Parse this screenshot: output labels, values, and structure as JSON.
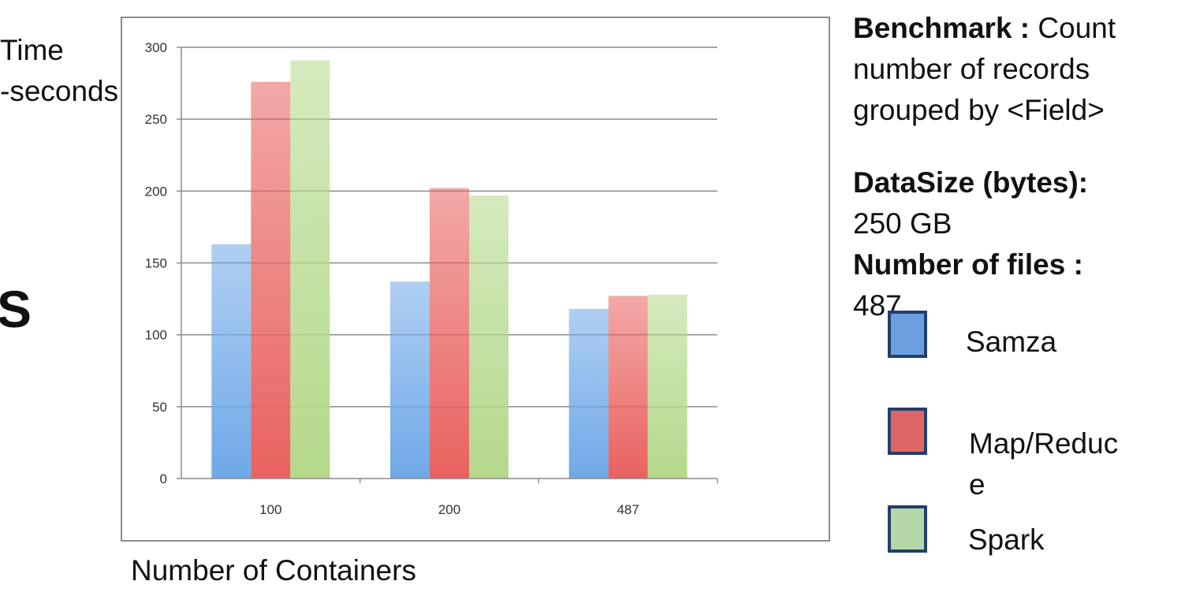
{
  "left_text": {
    "ylabel_line1": "Time",
    "ylabel_line2": "-seconds",
    "big_letter": "S"
  },
  "info": {
    "benchmark_label": "Benchmark :",
    "benchmark_value_line1": "Count",
    "benchmark_value_line2": "number of records",
    "benchmark_value_line3": "grouped by <Field>",
    "datasize_label": "DataSize (bytes):",
    "datasize_value": "250 GB",
    "files_label": "Number of files :",
    "files_value": "487"
  },
  "legend": {
    "samza": "Samza",
    "mapreduce_line1": "Map/Reduc",
    "mapreduce_line2": "e",
    "spark": "Spark"
  },
  "chart_data": {
    "type": "bar",
    "xlabel": "Number of Containers",
    "ylabel": "Time -seconds",
    "categories": [
      "100",
      "200",
      "487"
    ],
    "ylim": [
      0,
      300
    ],
    "yticks": [
      0,
      50,
      100,
      150,
      200,
      250,
      300
    ],
    "grid": true,
    "legend_position": "right",
    "series": [
      {
        "name": "Samza",
        "values": [
          163,
          137,
          118
        ],
        "color": "#6fa8e8"
      },
      {
        "name": "Map/Reduce",
        "values": [
          276,
          202,
          127
        ],
        "color": "#e8625f"
      },
      {
        "name": "Spark",
        "values": [
          291,
          197,
          128
        ],
        "color": "#b4d98a"
      }
    ]
  },
  "colors": {
    "samza_legend": "#6b9fe0",
    "mapreduce_legend": "#e06666",
    "spark_legend": "#b6d7a8",
    "legend_border": "#23406b"
  }
}
